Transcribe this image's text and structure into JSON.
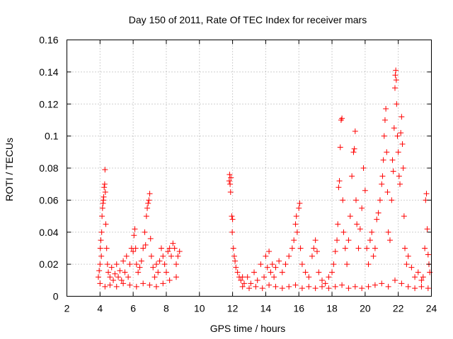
{
  "chart_data": {
    "type": "scatter",
    "title": "Day 150 of 2011, Rate Of TEC Index for receiver mars",
    "xlabel": "GPS time / hours",
    "ylabel": "ROTI / TECUs",
    "xlim": [
      2,
      24
    ],
    "ylim": [
      0,
      0.16
    ],
    "xticks": [
      2,
      4,
      6,
      8,
      10,
      12,
      14,
      16,
      18,
      20,
      22,
      24
    ],
    "yticks": [
      0,
      0.02,
      0.04,
      0.06,
      0.08,
      0.1,
      0.12,
      0.14,
      0.16
    ],
    "xtick_labels": [
      "2",
      "4",
      "6",
      "8",
      "10",
      "12",
      "14",
      "16",
      "18",
      "20",
      "22",
      "24"
    ],
    "ytick_labels": [
      "0",
      "0.02",
      "0.04",
      "0.06",
      "0.08",
      "0.1",
      "0.12",
      "0.14",
      "0.16"
    ],
    "grid": true,
    "marker": "+",
    "color": "#ff0000",
    "series": [
      {
        "name": "ROTI",
        "points": [
          [
            3.9,
            0.012
          ],
          [
            3.95,
            0.016
          ],
          [
            4.0,
            0.02
          ],
          [
            4.02,
            0.03
          ],
          [
            4.05,
            0.035
          ],
          [
            4.08,
            0.025
          ],
          [
            4.1,
            0.04
          ],
          [
            4.12,
            0.05
          ],
          [
            4.15,
            0.055
          ],
          [
            4.18,
            0.058
          ],
          [
            4.2,
            0.06
          ],
          [
            4.22,
            0.062
          ],
          [
            4.25,
            0.068
          ],
          [
            4.28,
            0.07
          ],
          [
            4.3,
            0.079
          ],
          [
            4.32,
            0.065
          ],
          [
            4.35,
            0.045
          ],
          [
            4.4,
            0.03
          ],
          [
            4.45,
            0.02
          ],
          [
            4.5,
            0.015
          ],
          [
            4.6,
            0.012
          ],
          [
            4.7,
            0.018
          ],
          [
            4.8,
            0.01
          ],
          [
            4.9,
            0.014
          ],
          [
            5.0,
            0.02
          ],
          [
            5.1,
            0.012
          ],
          [
            5.2,
            0.016
          ],
          [
            5.3,
            0.01
          ],
          [
            5.4,
            0.022
          ],
          [
            5.5,
            0.015
          ],
          [
            5.6,
            0.025
          ],
          [
            5.7,
            0.012
          ],
          [
            5.8,
            0.02
          ],
          [
            5.9,
            0.03
          ],
          [
            6.0,
            0.028
          ],
          [
            6.05,
            0.038
          ],
          [
            6.1,
            0.042
          ],
          [
            6.15,
            0.03
          ],
          [
            6.2,
            0.02
          ],
          [
            6.3,
            0.015
          ],
          [
            6.4,
            0.018
          ],
          [
            6.5,
            0.022
          ],
          [
            6.6,
            0.03
          ],
          [
            6.7,
            0.04
          ],
          [
            6.75,
            0.032
          ],
          [
            6.8,
            0.05
          ],
          [
            6.85,
            0.055
          ],
          [
            6.9,
            0.058
          ],
          [
            6.95,
            0.06
          ],
          [
            7.0,
            0.064
          ],
          [
            7.05,
            0.036
          ],
          [
            7.1,
            0.025
          ],
          [
            7.2,
            0.018
          ],
          [
            7.3,
            0.012
          ],
          [
            7.4,
            0.02
          ],
          [
            7.5,
            0.015
          ],
          [
            7.6,
            0.022
          ],
          [
            7.7,
            0.03
          ],
          [
            7.8,
            0.025
          ],
          [
            7.9,
            0.02
          ],
          [
            8.0,
            0.015
          ],
          [
            8.1,
            0.028
          ],
          [
            8.2,
            0.03
          ],
          [
            8.3,
            0.025
          ],
          [
            8.4,
            0.033
          ],
          [
            8.5,
            0.03
          ],
          [
            8.6,
            0.02
          ],
          [
            8.7,
            0.025
          ],
          [
            8.8,
            0.028
          ],
          [
            4.0,
            0.008
          ],
          [
            4.3,
            0.006
          ],
          [
            4.6,
            0.007
          ],
          [
            5.0,
            0.006
          ],
          [
            5.4,
            0.008
          ],
          [
            5.8,
            0.007
          ],
          [
            6.2,
            0.006
          ],
          [
            6.6,
            0.008
          ],
          [
            7.0,
            0.007
          ],
          [
            7.4,
            0.006
          ],
          [
            7.8,
            0.008
          ],
          [
            8.2,
            0.01
          ],
          [
            8.6,
            0.012
          ],
          [
            11.8,
            0.072
          ],
          [
            11.82,
            0.076
          ],
          [
            11.85,
            0.07
          ],
          [
            11.88,
            0.065
          ],
          [
            11.9,
            0.074
          ],
          [
            11.95,
            0.05
          ],
          [
            12.0,
            0.048
          ],
          [
            11.98,
            0.04
          ],
          [
            12.05,
            0.03
          ],
          [
            12.1,
            0.025
          ],
          [
            12.15,
            0.022
          ],
          [
            12.2,
            0.018
          ],
          [
            12.3,
            0.015
          ],
          [
            12.4,
            0.012
          ],
          [
            12.5,
            0.01
          ],
          [
            12.6,
            0.012
          ],
          [
            12.7,
            0.008
          ],
          [
            12.9,
            0.012
          ],
          [
            13.1,
            0.008
          ],
          [
            13.3,
            0.015
          ],
          [
            13.5,
            0.01
          ],
          [
            13.7,
            0.02
          ],
          [
            13.9,
            0.012
          ],
          [
            14.0,
            0.025
          ],
          [
            14.1,
            0.018
          ],
          [
            14.2,
            0.028
          ],
          [
            14.3,
            0.015
          ],
          [
            14.4,
            0.02
          ],
          [
            14.5,
            0.012
          ],
          [
            14.6,
            0.018
          ],
          [
            14.8,
            0.022
          ],
          [
            15.0,
            0.015
          ],
          [
            15.2,
            0.02
          ],
          [
            15.4,
            0.025
          ],
          [
            15.6,
            0.03
          ],
          [
            15.7,
            0.035
          ],
          [
            15.8,
            0.045
          ],
          [
            15.85,
            0.05
          ],
          [
            15.9,
            0.04
          ],
          [
            16.0,
            0.055
          ],
          [
            16.05,
            0.058
          ],
          [
            16.1,
            0.03
          ],
          [
            16.2,
            0.02
          ],
          [
            16.4,
            0.015
          ],
          [
            16.6,
            0.012
          ],
          [
            16.8,
            0.025
          ],
          [
            16.9,
            0.03
          ],
          [
            17.0,
            0.035
          ],
          [
            17.1,
            0.028
          ],
          [
            17.2,
            0.015
          ],
          [
            17.4,
            0.01
          ],
          [
            17.6,
            0.008
          ],
          [
            17.8,
            0.012
          ],
          [
            18.0,
            0.015
          ],
          [
            18.1,
            0.02
          ],
          [
            18.2,
            0.028
          ],
          [
            18.3,
            0.035
          ],
          [
            18.35,
            0.045
          ],
          [
            18.4,
            0.068
          ],
          [
            18.45,
            0.072
          ],
          [
            18.5,
            0.093
          ],
          [
            18.55,
            0.11
          ],
          [
            18.6,
            0.111
          ],
          [
            18.65,
            0.06
          ],
          [
            18.7,
            0.04
          ],
          [
            18.8,
            0.03
          ],
          [
            18.9,
            0.02
          ],
          [
            19.0,
            0.035
          ],
          [
            19.1,
            0.05
          ],
          [
            19.2,
            0.075
          ],
          [
            19.3,
            0.09
          ],
          [
            19.35,
            0.092
          ],
          [
            19.4,
            0.103
          ],
          [
            19.45,
            0.06
          ],
          [
            19.5,
            0.045
          ],
          [
            19.6,
            0.03
          ],
          [
            19.7,
            0.042
          ],
          [
            19.8,
            0.055
          ],
          [
            19.9,
            0.08
          ],
          [
            20.0,
            0.066
          ],
          [
            20.1,
            0.03
          ],
          [
            20.2,
            0.02
          ],
          [
            20.3,
            0.035
          ],
          [
            20.4,
            0.04
          ],
          [
            20.5,
            0.025
          ],
          [
            20.6,
            0.03
          ],
          [
            20.7,
            0.048
          ],
          [
            20.8,
            0.052
          ],
          [
            20.9,
            0.06
          ],
          [
            21.0,
            0.07
          ],
          [
            21.05,
            0.075
          ],
          [
            21.1,
            0.085
          ],
          [
            21.15,
            0.1
          ],
          [
            21.2,
            0.11
          ],
          [
            21.25,
            0.117
          ],
          [
            21.3,
            0.09
          ],
          [
            21.35,
            0.065
          ],
          [
            21.4,
            0.04
          ],
          [
            21.5,
            0.035
          ],
          [
            21.6,
            0.06
          ],
          [
            21.65,
            0.085
          ],
          [
            21.7,
            0.078
          ],
          [
            21.75,
            0.105
          ],
          [
            21.8,
            0.13
          ],
          [
            21.82,
            0.138
          ],
          [
            21.85,
            0.141
          ],
          [
            21.88,
            0.135
          ],
          [
            21.9,
            0.12
          ],
          [
            21.95,
            0.1
          ],
          [
            22.0,
            0.09
          ],
          [
            22.05,
            0.075
          ],
          [
            22.1,
            0.07
          ],
          [
            22.15,
            0.102
          ],
          [
            22.2,
            0.112
          ],
          [
            22.25,
            0.095
          ],
          [
            22.3,
            0.08
          ],
          [
            22.35,
            0.05
          ],
          [
            22.4,
            0.03
          ],
          [
            22.5,
            0.02
          ],
          [
            22.6,
            0.025
          ],
          [
            22.8,
            0.018
          ],
          [
            23.0,
            0.012
          ],
          [
            23.2,
            0.015
          ],
          [
            23.4,
            0.01
          ],
          [
            23.5,
            0.012
          ],
          [
            23.6,
            0.03
          ],
          [
            23.65,
            0.06
          ],
          [
            23.7,
            0.064
          ],
          [
            23.75,
            0.042
          ],
          [
            23.8,
            0.026
          ],
          [
            23.85,
            0.02
          ],
          [
            23.9,
            0.015
          ],
          [
            12.6,
            0.006
          ],
          [
            13.0,
            0.005
          ],
          [
            13.4,
            0.006
          ],
          [
            13.8,
            0.005
          ],
          [
            14.2,
            0.007
          ],
          [
            14.6,
            0.006
          ],
          [
            15.0,
            0.005
          ],
          [
            15.4,
            0.006
          ],
          [
            15.8,
            0.007
          ],
          [
            16.2,
            0.005
          ],
          [
            16.6,
            0.006
          ],
          [
            17.0,
            0.005
          ],
          [
            17.4,
            0.006
          ],
          [
            17.8,
            0.005
          ],
          [
            18.2,
            0.006
          ],
          [
            18.6,
            0.007
          ],
          [
            19.0,
            0.005
          ],
          [
            19.4,
            0.006
          ],
          [
            19.8,
            0.005
          ],
          [
            20.2,
            0.006
          ],
          [
            20.6,
            0.007
          ],
          [
            21.0,
            0.008
          ],
          [
            21.4,
            0.006
          ],
          [
            21.8,
            0.01
          ],
          [
            22.2,
            0.008
          ],
          [
            22.6,
            0.006
          ],
          [
            23.0,
            0.005
          ],
          [
            23.4,
            0.006
          ],
          [
            23.8,
            0.005
          ]
        ]
      }
    ]
  }
}
